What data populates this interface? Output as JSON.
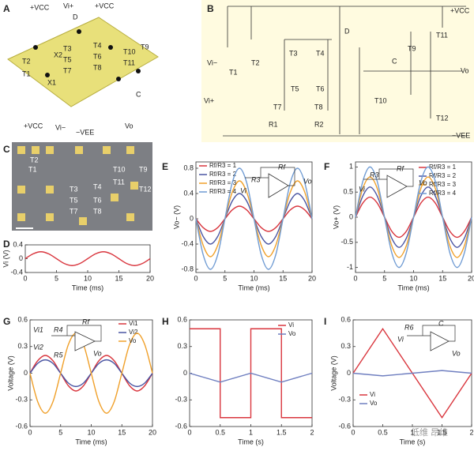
{
  "panel_letters": [
    "A",
    "B",
    "C",
    "D",
    "E",
    "F",
    "G",
    "H",
    "I"
  ],
  "panel_a": {
    "labels": [
      "+VCC",
      "Vi+",
      "D",
      "+VCC",
      "T2",
      "X2",
      "T3",
      "T5",
      "T7",
      "T4",
      "T6",
      "T8",
      "T10",
      "T11",
      "T9",
      "T1",
      "X1",
      "C",
      "+VCC",
      "Vi−",
      "−VEE",
      "Vo"
    ]
  },
  "panel_b": {
    "labels": [
      "+VCC",
      "D",
      "T3",
      "T4",
      "T2",
      "T1",
      "Vi−",
      "Vi+",
      "T5",
      "T6",
      "T7",
      "T8",
      "R1",
      "R2",
      "T9",
      "T11",
      "C",
      "Vo",
      "T10",
      "T12",
      "−VEE"
    ]
  },
  "panel_c": {
    "labels": [
      "T2",
      "T1",
      "T3",
      "T5",
      "T7",
      "T4",
      "T6",
      "T8",
      "T10",
      "T11",
      "T9",
      "T12"
    ]
  },
  "watermark": "低维 昂维",
  "chart_data": [
    {
      "type": "line",
      "smooth": true,
      "ylabel": "Vi (V)",
      "xlabel": "Time (ms)",
      "color": "#d9363e",
      "x": [
        0,
        1.25,
        2.5,
        3.75,
        5,
        6.25,
        7.5,
        8.75,
        10,
        11.25,
        12.5,
        13.75,
        15,
        16.25,
        17.5,
        18.75,
        20
      ],
      "values": [
        0,
        0.14,
        0.2,
        0.14,
        0,
        -0.14,
        -0.2,
        -0.14,
        0,
        0.14,
        0.2,
        0.14,
        0,
        -0.14,
        -0.2,
        -0.14,
        0
      ],
      "xlim": [
        0,
        20
      ],
      "xticks": [
        0,
        5,
        10,
        15,
        20
      ],
      "ylim": [
        -0.4,
        0.4
      ],
      "yticks": [
        -0.4,
        0,
        0.4
      ]
    },
    {
      "type": "line",
      "smooth": true,
      "ylabel": "Vo− (V)",
      "xlabel": "Time (ms)",
      "legend": "upper left",
      "inset_labels": [
        "R3",
        "Rf",
        "Vi",
        "Vo"
      ],
      "x": [
        0,
        1.25,
        2.5,
        3.75,
        5,
        6.25,
        7.5,
        8.75,
        10,
        11.25,
        12.5,
        13.75,
        15,
        16.25,
        17.5,
        18.75,
        20
      ],
      "series": [
        {
          "name": "Rf/R3 = 1",
          "color": "#d9363e",
          "values": [
            0,
            -0.14,
            -0.2,
            -0.14,
            0,
            0.14,
            0.2,
            0.14,
            0,
            -0.14,
            -0.2,
            -0.14,
            0,
            0.14,
            0.2,
            0.14,
            0
          ]
        },
        {
          "name": "Rf/R3 = 2",
          "color": "#4a55a2",
          "values": [
            0,
            -0.28,
            -0.4,
            -0.28,
            0,
            0.28,
            0.4,
            0.28,
            0,
            -0.28,
            -0.4,
            -0.28,
            0,
            0.28,
            0.4,
            0.28,
            0
          ]
        },
        {
          "name": "Rf/R3 = 3",
          "color": "#f0a02a",
          "values": [
            0,
            -0.42,
            -0.6,
            -0.42,
            0,
            0.42,
            0.6,
            0.42,
            0,
            -0.42,
            -0.6,
            -0.42,
            0,
            0.42,
            0.6,
            0.42,
            0
          ]
        },
        {
          "name": "Rf/R3 = 4",
          "color": "#6f9bd3",
          "values": [
            0,
            -0.57,
            -0.8,
            -0.57,
            0,
            0.57,
            0.8,
            0.57,
            0,
            -0.57,
            -0.8,
            -0.57,
            0,
            0.57,
            0.8,
            0.57,
            0
          ]
        }
      ],
      "xlim": [
        0,
        20
      ],
      "xticks": [
        0,
        5,
        10,
        15,
        20
      ],
      "ylim": [
        -0.85,
        0.9
      ],
      "yticks": [
        -0.8,
        -0.4,
        0,
        0.4,
        0.8
      ]
    },
    {
      "type": "line",
      "smooth": true,
      "ylabel": "Vo+ (V)",
      "xlabel": "Time (ms)",
      "legend": "upper right",
      "inset_labels": [
        "R3",
        "Rf",
        "Vi",
        "Vo"
      ],
      "x": [
        0,
        1.25,
        2.5,
        3.75,
        5,
        6.25,
        7.5,
        8.75,
        10,
        11.25,
        12.5,
        13.75,
        15,
        16.25,
        17.5,
        18.75,
        20
      ],
      "series": [
        {
          "name": "Rf/R3 = 1",
          "color": "#d9363e",
          "values": [
            0,
            0.28,
            0.4,
            0.28,
            0,
            -0.28,
            -0.4,
            -0.28,
            0,
            0.28,
            0.4,
            0.28,
            0,
            -0.28,
            -0.4,
            -0.28,
            0
          ]
        },
        {
          "name": "Rf/R3 = 2",
          "color": "#4a55a2",
          "values": [
            0,
            0.42,
            0.6,
            0.42,
            0,
            -0.42,
            -0.6,
            -0.42,
            0,
            0.42,
            0.6,
            0.42,
            0,
            -0.42,
            -0.6,
            -0.42,
            0
          ]
        },
        {
          "name": "Rf/R3 = 3",
          "color": "#f0a02a",
          "values": [
            0,
            0.57,
            0.8,
            0.57,
            0,
            -0.57,
            -0.8,
            -0.57,
            0,
            0.57,
            0.8,
            0.57,
            0,
            -0.57,
            -0.8,
            -0.57,
            0
          ]
        },
        {
          "name": "Rf/R3 = 4",
          "color": "#6f9bd3",
          "values": [
            0,
            0.71,
            1,
            0.71,
            0,
            -0.71,
            -1,
            -0.71,
            0,
            0.71,
            1,
            0.71,
            0,
            -0.71,
            -1,
            -0.71,
            0
          ]
        }
      ],
      "xlim": [
        0,
        20
      ],
      "xticks": [
        0,
        5,
        10,
        15,
        20
      ],
      "ylim": [
        -1.1,
        1.1
      ],
      "yticks": [
        -1,
        -0.5,
        0,
        0.5,
        1
      ]
    },
    {
      "type": "line",
      "smooth": true,
      "ylabel": "Voltage (V)",
      "xlabel": "Time (ms)",
      "legend": "upper right",
      "inset_labels": [
        "R4",
        "Rf",
        "Vi1",
        "Vi2",
        "R5",
        "Vo"
      ],
      "x": [
        0,
        1.25,
        2.5,
        3.75,
        5,
        6.25,
        7.5,
        8.75,
        10,
        11.25,
        12.5,
        13.75,
        15,
        16.25,
        17.5,
        18.75,
        20
      ],
      "series": [
        {
          "name": "Vi1",
          "color": "#d9363e",
          "values": [
            0,
            0.14,
            0.2,
            0.14,
            0,
            -0.14,
            -0.2,
            -0.14,
            0,
            0.14,
            0.2,
            0.14,
            0,
            -0.14,
            -0.2,
            -0.14,
            0
          ]
        },
        {
          "name": "Vi2",
          "color": "#4a55a2",
          "values": [
            0,
            0.11,
            0.15,
            0.11,
            0,
            -0.11,
            -0.15,
            -0.11,
            0,
            0.11,
            0.15,
            0.11,
            0,
            -0.11,
            -0.15,
            -0.11,
            0
          ]
        },
        {
          "name": "Vo",
          "color": "#f0a02a",
          "values": [
            0,
            -0.32,
            -0.45,
            -0.32,
            0,
            0.32,
            0.45,
            0.32,
            0,
            -0.32,
            -0.45,
            -0.32,
            0,
            0.32,
            0.45,
            0.32,
            0
          ]
        }
      ],
      "xlim": [
        0,
        20
      ],
      "xticks": [
        0,
        5,
        10,
        15,
        20
      ],
      "ylim": [
        -0.6,
        0.6
      ],
      "yticks": [
        -0.6,
        -0.3,
        0,
        0.3,
        0.6
      ]
    },
    {
      "type": "line",
      "smooth": false,
      "xlabel": "Time (s)",
      "legend": "upper right",
      "x": [
        0,
        0.5,
        0.5,
        1,
        1,
        1.5,
        1.5,
        2
      ],
      "series": [
        {
          "name": "Vi",
          "color": "#d9363e",
          "values": [
            0.5,
            0.5,
            -0.5,
            -0.5,
            0.5,
            0.5,
            -0.5,
            -0.5
          ]
        },
        {
          "name": "Vo",
          "color": "#6f7fc0",
          "values": [
            0,
            -0.1,
            -0.1,
            0,
            0,
            -0.1,
            -0.1,
            0
          ]
        }
      ],
      "xlim": [
        0,
        2
      ],
      "xticks": [
        0,
        0.5,
        1,
        1.5,
        2
      ],
      "ylim": [
        -0.6,
        0.6
      ],
      "yticks": [
        -0.6,
        -0.3,
        0,
        0.3,
        0.6
      ]
    },
    {
      "type": "line",
      "smooth": false,
      "ylabel": "Voltage (V)",
      "xlabel": "Time (s)",
      "legend": "lower left",
      "inset_labels": [
        "R6",
        "C",
        "Vi",
        "Vo"
      ],
      "x": [
        0,
        0.5,
        1.5,
        2
      ],
      "series": [
        {
          "name": "Vi",
          "color": "#d9363e",
          "values": [
            0,
            0.5,
            -0.5,
            0
          ]
        },
        {
          "name": "Vo",
          "color": "#6f7fc0",
          "values": [
            0,
            -0.03,
            0.03,
            0
          ]
        }
      ],
      "xlim": [
        0,
        2
      ],
      "xticks": [
        0,
        0.5,
        1,
        1.5,
        2
      ],
      "ylim": [
        -0.6,
        0.6
      ],
      "yticks": [
        -0.6,
        -0.3,
        0,
        0.3,
        0.6
      ]
    }
  ]
}
